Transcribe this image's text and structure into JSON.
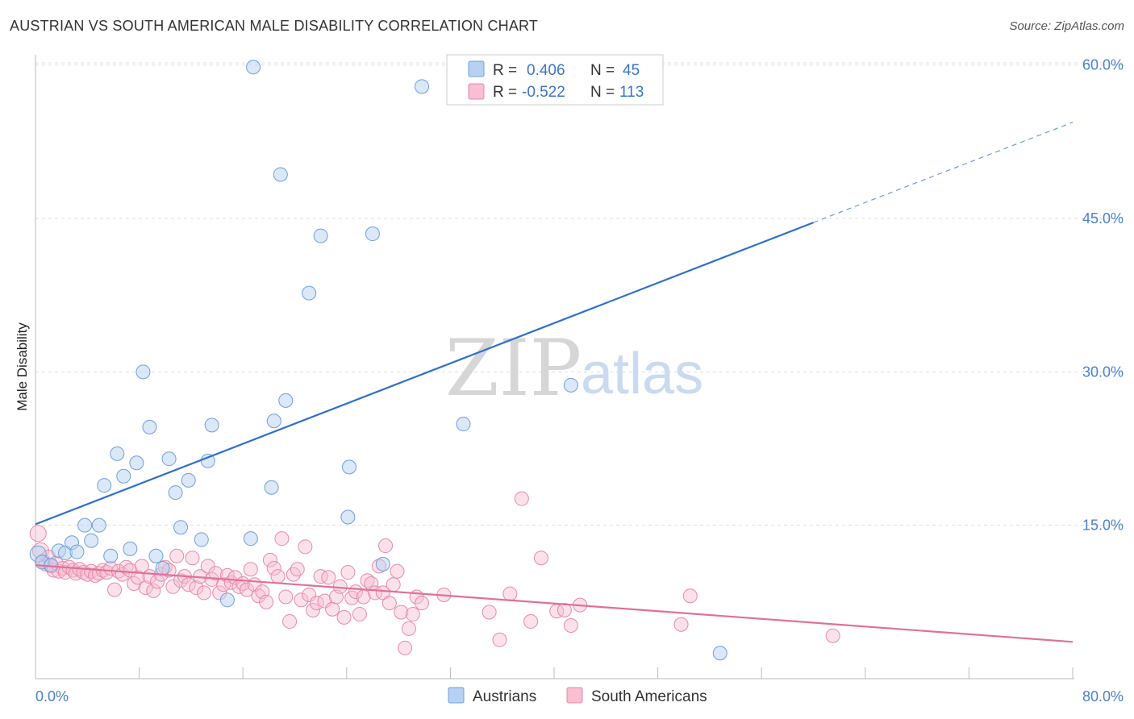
{
  "header": {
    "title": "AUSTRIAN VS SOUTH AMERICAN MALE DISABILITY CORRELATION CHART",
    "source": "Source: ZipAtlas.com"
  },
  "watermark": {
    "zip": "ZIP",
    "atlas": "atlas"
  },
  "colors": {
    "austrians_fill": "#b7d1f2",
    "austrians_stroke": "#6f9fdb",
    "austrians_line": "#2f6fcc",
    "south_fill": "#f7bfd0",
    "south_stroke": "#e889a8",
    "south_line": "#e0709a",
    "tick_text": "#4a80cc"
  },
  "chart_data": {
    "type": "scatter",
    "title": "AUSTRIAN VS SOUTH AMERICAN MALE DISABILITY CORRELATION CHART",
    "xlabel": "",
    "ylabel": "Male Disability",
    "xlim": [
      0,
      80
    ],
    "ylim": [
      0,
      61
    ],
    "x_tick_labels": {
      "min": "0.0%",
      "max": "80.0%"
    },
    "x_minor_ticks": [
      0,
      8,
      16,
      24,
      32,
      40,
      48,
      56,
      64,
      72,
      80
    ],
    "y_ticks": [
      {
        "value": 15,
        "label": "15.0%"
      },
      {
        "value": 30,
        "label": "30.0%"
      },
      {
        "value": 45,
        "label": "45.0%"
      },
      {
        "value": 60,
        "label": "60.0%"
      }
    ],
    "grid": "horizontal dashed",
    "legend_position": "top-center",
    "legend": [
      {
        "series": "Austrians",
        "r_label": "R =",
        "r": "0.406",
        "n_label": "N =",
        "n": "45"
      },
      {
        "series": "South Americans",
        "r_label": "R =",
        "r": "-0.522",
        "n_label": "N =",
        "n": "113"
      }
    ],
    "series": [
      {
        "name": "Austrians",
        "trend": {
          "x0": 0,
          "y0": 15.1,
          "x1": 60,
          "y1": 44.6,
          "dashed_to_x": 80,
          "dashed_to_y": 54.4
        },
        "points": [
          [
            0.2,
            12.2
          ],
          [
            0.5,
            11.4
          ],
          [
            1.2,
            11.1
          ],
          [
            1.8,
            12.5
          ],
          [
            2.3,
            12.3
          ],
          [
            2.8,
            13.3
          ],
          [
            3.2,
            12.4
          ],
          [
            3.8,
            15.0
          ],
          [
            4.3,
            13.5
          ],
          [
            4.9,
            15.0
          ],
          [
            5.3,
            18.9
          ],
          [
            5.8,
            12.0
          ],
          [
            6.3,
            22.0
          ],
          [
            6.8,
            19.8
          ],
          [
            7.3,
            12.7
          ],
          [
            7.8,
            21.1
          ],
          [
            8.3,
            30.0
          ],
          [
            8.8,
            24.6
          ],
          [
            9.3,
            12.0
          ],
          [
            9.8,
            10.8
          ],
          [
            10.3,
            21.5
          ],
          [
            10.8,
            18.2
          ],
          [
            11.2,
            14.8
          ],
          [
            11.8,
            19.4
          ],
          [
            12.8,
            13.6
          ],
          [
            13.3,
            21.3
          ],
          [
            13.6,
            24.8
          ],
          [
            14.8,
            7.7
          ],
          [
            16.6,
            13.7
          ],
          [
            16.8,
            59.8
          ],
          [
            18.2,
            18.7
          ],
          [
            18.4,
            25.2
          ],
          [
            18.9,
            49.3
          ],
          [
            19.3,
            27.2
          ],
          [
            21.1,
            37.7
          ],
          [
            22.0,
            43.3
          ],
          [
            24.1,
            15.8
          ],
          [
            24.2,
            20.7
          ],
          [
            26.0,
            43.5
          ],
          [
            26.8,
            11.2
          ],
          [
            29.8,
            57.9
          ],
          [
            33.0,
            24.9
          ],
          [
            34.6,
            59.8
          ],
          [
            41.3,
            28.7
          ],
          [
            52.8,
            2.5
          ]
        ]
      },
      {
        "name": "South Americans",
        "trend": {
          "x0": 0,
          "y0": 11.1,
          "x1": 80,
          "y1": 3.6
        },
        "points": [
          [
            0.2,
            14.2
          ],
          [
            0.4,
            12.5
          ],
          [
            0.6,
            11.5
          ],
          [
            0.8,
            11.2
          ],
          [
            1.0,
            11.9
          ],
          [
            1.2,
            11.0
          ],
          [
            1.4,
            10.6
          ],
          [
            1.6,
            11.3
          ],
          [
            1.8,
            10.5
          ],
          [
            2.1,
            10.8
          ],
          [
            2.3,
            10.4
          ],
          [
            2.6,
            10.9
          ],
          [
            2.9,
            10.6
          ],
          [
            3.1,
            10.3
          ],
          [
            3.4,
            10.7
          ],
          [
            3.7,
            10.4
          ],
          [
            4.0,
            10.2
          ],
          [
            4.3,
            10.5
          ],
          [
            4.6,
            10.1
          ],
          [
            4.9,
            10.3
          ],
          [
            5.2,
            10.6
          ],
          [
            5.5,
            10.4
          ],
          [
            5.8,
            10.8
          ],
          [
            6.1,
            8.7
          ],
          [
            6.4,
            10.5
          ],
          [
            6.7,
            10.2
          ],
          [
            7.0,
            10.9
          ],
          [
            7.3,
            10.6
          ],
          [
            7.6,
            9.3
          ],
          [
            7.9,
            9.9
          ],
          [
            8.2,
            11.0
          ],
          [
            8.5,
            8.9
          ],
          [
            8.8,
            10.0
          ],
          [
            9.1,
            8.6
          ],
          [
            9.4,
            9.5
          ],
          [
            9.7,
            10.2
          ],
          [
            10.0,
            10.9
          ],
          [
            10.3,
            10.6
          ],
          [
            10.6,
            9.0
          ],
          [
            10.9,
            12.0
          ],
          [
            11.2,
            9.6
          ],
          [
            11.5,
            10.0
          ],
          [
            11.8,
            9.2
          ],
          [
            12.1,
            11.8
          ],
          [
            12.4,
            8.9
          ],
          [
            12.7,
            10.0
          ],
          [
            13.0,
            8.4
          ],
          [
            13.3,
            11.0
          ],
          [
            13.6,
            9.7
          ],
          [
            13.9,
            10.3
          ],
          [
            14.2,
            8.4
          ],
          [
            14.5,
            9.2
          ],
          [
            14.8,
            10.1
          ],
          [
            15.1,
            9.4
          ],
          [
            15.4,
            9.9
          ],
          [
            15.7,
            9.0
          ],
          [
            16.0,
            9.3
          ],
          [
            16.3,
            8.7
          ],
          [
            16.6,
            10.7
          ],
          [
            16.9,
            9.2
          ],
          [
            17.2,
            8.1
          ],
          [
            17.5,
            8.5
          ],
          [
            17.8,
            7.5
          ],
          [
            18.1,
            11.6
          ],
          [
            18.4,
            10.8
          ],
          [
            18.7,
            10.0
          ],
          [
            19.0,
            13.7
          ],
          [
            19.3,
            8.0
          ],
          [
            19.6,
            5.6
          ],
          [
            19.9,
            10.2
          ],
          [
            20.2,
            10.7
          ],
          [
            20.5,
            7.7
          ],
          [
            20.8,
            12.9
          ],
          [
            21.1,
            8.2
          ],
          [
            21.4,
            6.7
          ],
          [
            21.7,
            7.4
          ],
          [
            22.0,
            10.0
          ],
          [
            22.3,
            7.6
          ],
          [
            22.6,
            9.9
          ],
          [
            22.9,
            6.8
          ],
          [
            23.2,
            8.0
          ],
          [
            23.5,
            9.0
          ],
          [
            23.8,
            6.0
          ],
          [
            24.1,
            10.4
          ],
          [
            24.4,
            7.9
          ],
          [
            24.7,
            8.5
          ],
          [
            25.0,
            6.3
          ],
          [
            25.3,
            8.0
          ],
          [
            25.6,
            9.6
          ],
          [
            25.9,
            9.3
          ],
          [
            26.2,
            8.4
          ],
          [
            26.5,
            11.0
          ],
          [
            26.8,
            8.4
          ],
          [
            27.0,
            13.0
          ],
          [
            27.3,
            7.4
          ],
          [
            27.6,
            9.2
          ],
          [
            27.9,
            10.5
          ],
          [
            28.2,
            6.5
          ],
          [
            28.5,
            3.0
          ],
          [
            28.8,
            4.9
          ],
          [
            29.1,
            6.3
          ],
          [
            29.4,
            8.0
          ],
          [
            29.8,
            7.4
          ],
          [
            31.5,
            8.2
          ],
          [
            35.0,
            6.5
          ],
          [
            35.8,
            3.8
          ],
          [
            36.6,
            8.3
          ],
          [
            37.5,
            17.6
          ],
          [
            38.2,
            5.6
          ],
          [
            39.0,
            11.8
          ],
          [
            40.2,
            6.6
          ],
          [
            40.8,
            6.7
          ],
          [
            41.3,
            5.2
          ],
          [
            42.0,
            7.2
          ],
          [
            49.8,
            5.3
          ],
          [
            50.5,
            8.1
          ],
          [
            61.5,
            4.2
          ]
        ]
      }
    ]
  },
  "bottom_legend": [
    {
      "label": "Austrians"
    },
    {
      "label": "South Americans"
    }
  ]
}
